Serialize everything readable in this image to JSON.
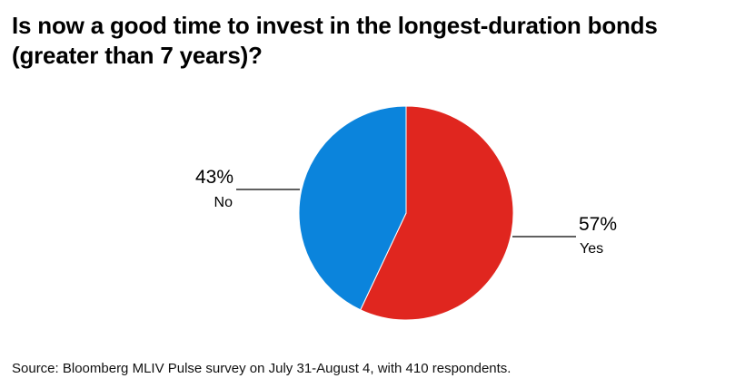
{
  "title": "Is now a good time to invest in the longest-duration bonds (greater than 7 years)?",
  "source": "Source: Bloomberg MLIV Pulse survey on July 31-August 4, with 410 respondents.",
  "colors": {
    "yes": "#e0261f",
    "no": "#0b84dc",
    "leader": "#000000"
  },
  "chart_data": {
    "type": "pie",
    "title": "Is now a good time to invest in the longest-duration bonds (greater than 7 years)?",
    "start_angle": "12 o'clock, clockwise",
    "slices": [
      {
        "label": "Yes",
        "value": 57,
        "value_label": "57%",
        "color": "#e0261f"
      },
      {
        "label": "No",
        "value": 43,
        "value_label": "43%",
        "color": "#0b84dc"
      }
    ]
  }
}
